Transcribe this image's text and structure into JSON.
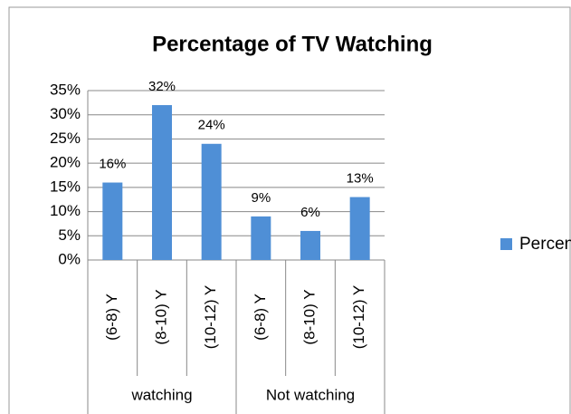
{
  "chart_data": {
    "type": "bar",
    "title": "Percentage of TV Watching",
    "groups": [
      {
        "label": "watching",
        "categories": [
          "(6-8) Y",
          "(8-10) Y",
          "(10-12) Y"
        ]
      },
      {
        "label": "Not watching",
        "categories": [
          "(6-8) Y",
          "(8-10) Y",
          "(10-12) Y"
        ]
      }
    ],
    "series": [
      {
        "name": "Percentage",
        "color": "#4f8fd6",
        "values": [
          16,
          32,
          24,
          9,
          6,
          13
        ],
        "value_labels": [
          "16%",
          "32%",
          "24%",
          "9%",
          "6%",
          "13%"
        ]
      }
    ],
    "ylim": [
      0,
      35
    ],
    "yticks": [
      {
        "value": 0,
        "label": "0%"
      },
      {
        "value": 5,
        "label": "5%"
      },
      {
        "value": 10,
        "label": "10%"
      },
      {
        "value": 15,
        "label": "15%"
      },
      {
        "value": 20,
        "label": "20%"
      },
      {
        "value": 25,
        "label": "25%"
      },
      {
        "value": 30,
        "label": "30%"
      },
      {
        "value": 35,
        "label": "35%"
      }
    ],
    "grid": true,
    "legend": "right"
  }
}
